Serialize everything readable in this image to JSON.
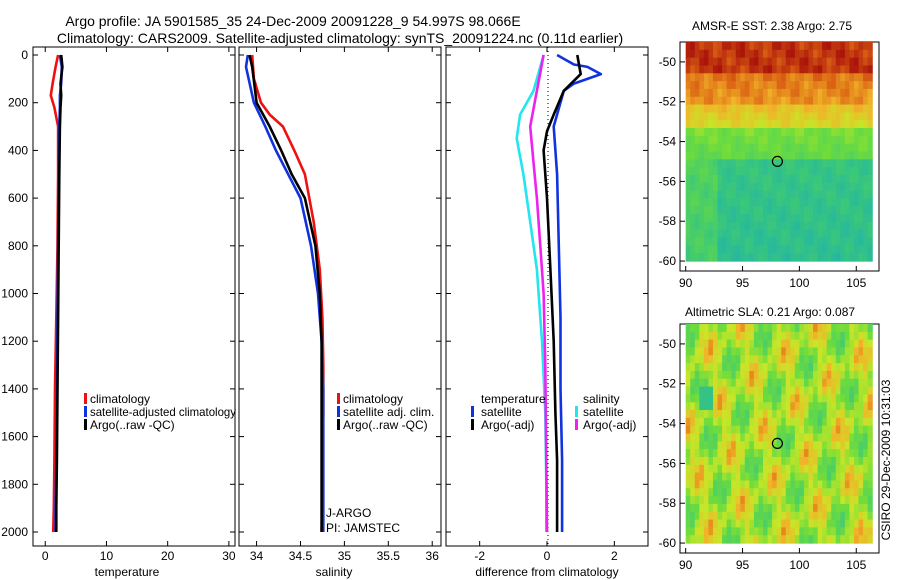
{
  "header": {
    "title_line1": "Argo profile: JA 5901585_35 24-Dec-2009 20091228_9 54.997S 98.066E",
    "title_line2": "Climatology: CARS2009. Satellite-adjusted climatology: synTS_20091224.nc (0.11d earlier)"
  },
  "side_label": "CSIRO 29-Dec-2009 10:31:03",
  "colors": {
    "climatology": "#ee1111",
    "satellite": "#1133dd",
    "argo": "#000000",
    "sat_salinity": "#22e5ee",
    "argo_adj_salinity": "#ee22ee"
  },
  "chart_data": [
    {
      "type": "line",
      "xlabel": "temperature",
      "xlim": [
        -2,
        31
      ],
      "xticks": [
        "0",
        "10",
        "20",
        "30"
      ],
      "xtick_values": [
        0,
        10,
        20,
        30
      ],
      "ylim": [
        2060,
        0
      ],
      "yticks": [
        "0",
        "200",
        "400",
        "600",
        "800",
        "1000",
        "1200",
        "1400",
        "1600",
        "1800",
        "2000"
      ],
      "ytick_values": [
        0,
        200,
        400,
        600,
        800,
        1000,
        1200,
        1400,
        1600,
        1800,
        2000
      ],
      "legend": [
        "climatology",
        "satellite-adjusted climatology",
        "Argo(..raw -QC)"
      ],
      "series": [
        {
          "name": "climatology",
          "color": "#ee1111",
          "x": [
            2.1,
            1.7,
            1.2,
            0.9,
            1.5,
            2.1,
            2.1,
            2.0,
            1.8,
            1.6,
            1.5,
            1.4,
            1.3
          ],
          "y": [
            0,
            50,
            120,
            170,
            220,
            300,
            500,
            800,
            1100,
            1400,
            1700,
            1900,
            2000
          ]
        },
        {
          "name": "satellite-adjusted climatology",
          "color": "#1133dd",
          "x": [
            2.4,
            2.7,
            2.6,
            2.4,
            2.4,
            2.3,
            2.2,
            2.1,
            2.0,
            1.9,
            1.8,
            1.7,
            1.7
          ],
          "y": [
            0,
            50,
            120,
            170,
            220,
            300,
            500,
            800,
            1100,
            1400,
            1700,
            1900,
            2000
          ]
        },
        {
          "name": "Argo(..raw -QC)",
          "color": "#000000",
          "x": [
            2.6,
            2.8,
            2.5,
            2.6,
            2.5,
            2.4,
            2.3,
            2.2,
            2.1,
            2.0,
            1.9,
            1.8,
            1.8
          ],
          "y": [
            0,
            50,
            120,
            170,
            220,
            300,
            500,
            800,
            1100,
            1400,
            1700,
            1900,
            2000
          ]
        }
      ]
    },
    {
      "type": "line",
      "xlabel": "salinity",
      "xlim": [
        33.8,
        36.1
      ],
      "xticks": [
        "34",
        "34.5",
        "35",
        "35.5",
        "36"
      ],
      "xtick_values": [
        34,
        34.5,
        35,
        35.5,
        36
      ],
      "ylim": [
        2060,
        0
      ],
      "legend": [
        "climatology",
        "satellite adj. clim.",
        "Argo(..raw -QC)"
      ],
      "annotations": [
        "J-ARGO",
        "PI: JAMSTEC"
      ],
      "series": [
        {
          "name": "climatology",
          "color": "#ee1111",
          "x": [
            33.95,
            33.97,
            34.05,
            34.15,
            34.3,
            34.43,
            34.55,
            34.65,
            34.72,
            34.75,
            34.76,
            34.76,
            34.75,
            34.74
          ],
          "y": [
            0,
            100,
            200,
            250,
            300,
            400,
            500,
            700,
            900,
            1100,
            1300,
            1500,
            1800,
            2000
          ]
        },
        {
          "name": "satellite adj. clim.",
          "color": "#1133dd",
          "x": [
            33.9,
            33.88,
            33.97,
            34.1,
            34.22,
            34.36,
            34.5,
            34.62,
            34.7,
            34.74,
            34.76,
            34.76,
            34.76
          ],
          "y": [
            0,
            50,
            200,
            300,
            400,
            500,
            600,
            800,
            1000,
            1200,
            1400,
            1700,
            2000
          ]
        },
        {
          "name": "Argo(..raw -QC)",
          "color": "#000000",
          "x": [
            33.92,
            33.95,
            34.0,
            34.15,
            34.28,
            34.4,
            34.55,
            34.67,
            34.72,
            34.74,
            34.74,
            34.74,
            34.74
          ],
          "y": [
            0,
            50,
            200,
            300,
            400,
            500,
            600,
            800,
            1000,
            1200,
            1400,
            1700,
            2000
          ]
        }
      ]
    },
    {
      "type": "line",
      "xlabel": "difference from climatology",
      "xlim": [
        -3,
        3
      ],
      "xticks": [
        "-2",
        "0",
        "2"
      ],
      "xtick_values": [
        -2,
        0,
        2
      ],
      "ylim": [
        2060,
        0
      ],
      "legend_groups": [
        {
          "title": "temperature",
          "entries": [
            "satellite",
            "Argo(-adj)"
          ]
        },
        {
          "title": "salinity",
          "entries": [
            "satellite",
            "Argo(-adj)"
          ]
        }
      ],
      "series": [
        {
          "name": "temperature satellite",
          "color": "#1133dd",
          "x": [
            0.3,
            0.8,
            1.2,
            1.6,
            0.8,
            0.5,
            0.2,
            0.3,
            0.35,
            0.4,
            0.4,
            0.45,
            0.45,
            0.45
          ],
          "y": [
            0,
            40,
            50,
            80,
            120,
            150,
            300,
            500,
            800,
            1100,
            1400,
            1700,
            1900,
            2000
          ]
        },
        {
          "name": "temperature Argo(-adj)",
          "color": "#000000",
          "x": [
            0.9,
            1.0,
            0.5,
            0.2,
            0.0,
            -0.1,
            0.0,
            0.1,
            0.2,
            0.25,
            0.3,
            0.3,
            0.3
          ],
          "y": [
            0,
            80,
            150,
            250,
            320,
            400,
            600,
            900,
            1200,
            1500,
            1700,
            1900,
            2000
          ]
        },
        {
          "name": "salinity satellite",
          "color": "#22e5ee",
          "x": [
            -0.1,
            -0.4,
            -0.8,
            -0.9,
            -0.7,
            -0.5,
            -0.3,
            -0.15,
            -0.05,
            -0.02,
            -0.02
          ],
          "y": [
            0,
            150,
            250,
            350,
            500,
            700,
            900,
            1200,
            1500,
            1800,
            2000
          ]
        },
        {
          "name": "salinity Argo(-adj)",
          "color": "#ee22ee",
          "x": [
            -0.1,
            -0.3,
            -0.5,
            -0.4,
            -0.3,
            -0.2,
            -0.1,
            -0.05,
            -0.02,
            0.0
          ],
          "y": [
            0,
            150,
            300,
            450,
            600,
            800,
            1000,
            1300,
            1700,
            2000
          ]
        }
      ]
    },
    {
      "type": "heatmap",
      "title": "AMSR-E SST: 2.38 Argo: 2.75",
      "xlim": [
        89.5,
        107
      ],
      "ylim": [
        -60.5,
        -49
      ],
      "xticks": [
        "90",
        "95",
        "100",
        "105"
      ],
      "xtick_values": [
        90,
        95,
        100,
        105
      ],
      "yticks": [
        "-50",
        "-52",
        "-54",
        "-56",
        "-58",
        "-60"
      ],
      "ytick_values": [
        -50,
        -52,
        -54,
        -56,
        -58,
        -60
      ],
      "marker": {
        "lon": 98.066,
        "lat": -54.997
      }
    },
    {
      "type": "heatmap",
      "title": "Altimetric SLA: 0.21 Argo: 0.087",
      "xlim": [
        89.5,
        107
      ],
      "ylim": [
        -60.5,
        -49
      ],
      "xticks": [
        "90",
        "95",
        "100",
        "105"
      ],
      "xtick_values": [
        90,
        95,
        100,
        105
      ],
      "yticks": [
        "-50",
        "-52",
        "-54",
        "-56",
        "-58",
        "-60"
      ],
      "ytick_values": [
        -50,
        -52,
        -54,
        -56,
        -58,
        -60
      ],
      "marker": {
        "lon": 98.066,
        "lat": -54.997
      }
    }
  ]
}
